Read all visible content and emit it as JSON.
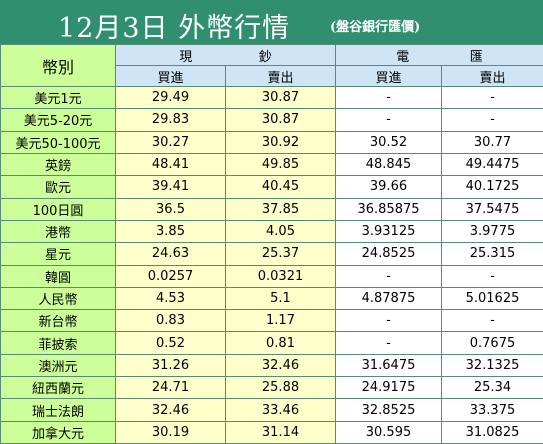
{
  "title": "12月3日 外幣行情",
  "subtitle": "(盤谷銀行匯價)",
  "headers": {
    "currency": "幣別",
    "cash_chars": [
      "現",
      "鈔"
    ],
    "wire_chars": [
      "電",
      "匯"
    ],
    "buy": "買進",
    "sell": "賣出"
  },
  "rows": [
    {
      "name": "美元1元",
      "cash_buy": "29.49",
      "cash_sell": "30.87",
      "wire_buy": "-",
      "wire_sell": "-"
    },
    {
      "name": "美元5-20元",
      "cash_buy": "29.83",
      "cash_sell": "30.87",
      "wire_buy": "-",
      "wire_sell": "-"
    },
    {
      "name": "美元50-100元",
      "cash_buy": "30.27",
      "cash_sell": "30.92",
      "wire_buy": "30.52",
      "wire_sell": "30.77"
    },
    {
      "name": "英鎊",
      "cash_buy": "48.41",
      "cash_sell": "49.85",
      "wire_buy": "48.845",
      "wire_sell": "49.4475"
    },
    {
      "name": "歐元",
      "cash_buy": "39.41",
      "cash_sell": "40.45",
      "wire_buy": "39.66",
      "wire_sell": "40.1725"
    },
    {
      "name": "100日圓",
      "cash_buy": "36.5",
      "cash_sell": "37.85",
      "wire_buy": "36.85875",
      "wire_sell": "37.5475"
    },
    {
      "name": "港幣",
      "cash_buy": "3.85",
      "cash_sell": "4.05",
      "wire_buy": "3.93125",
      "wire_sell": "3.9775"
    },
    {
      "name": "星元",
      "cash_buy": "24.63",
      "cash_sell": "25.37",
      "wire_buy": "24.8525",
      "wire_sell": "25.315"
    },
    {
      "name": "韓圓",
      "cash_buy": "0.0257",
      "cash_sell": "0.0321",
      "wire_buy": "-",
      "wire_sell": "-"
    },
    {
      "name": "人民幣",
      "cash_buy": "4.53",
      "cash_sell": "5.1",
      "wire_buy": "4.87875",
      "wire_sell": "5.01625"
    },
    {
      "name": "新台幣",
      "cash_buy": "0.83",
      "cash_sell": "1.17",
      "wire_buy": "-",
      "wire_sell": "-"
    },
    {
      "name": "菲披索",
      "cash_buy": "0.52",
      "cash_sell": "0.81",
      "wire_buy": "-",
      "wire_sell": "0.7675"
    },
    {
      "name": "澳洲元",
      "cash_buy": "31.26",
      "cash_sell": "32.46",
      "wire_buy": "31.6475",
      "wire_sell": "32.1325"
    },
    {
      "name": "紐西蘭元",
      "cash_buy": "24.71",
      "cash_sell": "25.88",
      "wire_buy": "24.9175",
      "wire_sell": "25.34"
    },
    {
      "name": "瑞士法朗",
      "cash_buy": "32.46",
      "cash_sell": "33.46",
      "wire_buy": "32.8525",
      "wire_sell": "33.375"
    },
    {
      "name": "加拿大元",
      "cash_buy": "30.19",
      "cash_sell": "31.14",
      "wire_buy": "30.595",
      "wire_sell": "31.0825"
    }
  ]
}
